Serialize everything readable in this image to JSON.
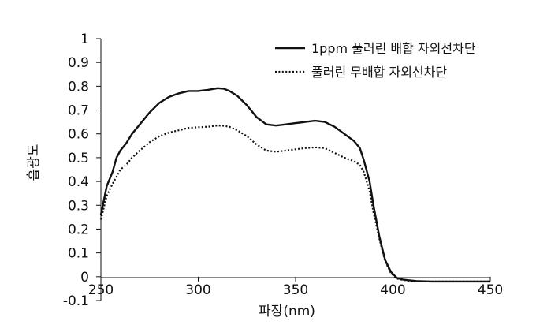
{
  "chart_data": {
    "type": "line",
    "title": "",
    "xlabel": "파장(nm)",
    "ylabel": "흡광도",
    "xlim": [
      250,
      450
    ],
    "ylim": [
      -0.1,
      1
    ],
    "xticks": [
      250,
      300,
      350,
      400,
      450
    ],
    "yticks": [
      -0.1,
      0,
      0.1,
      0.2,
      0.3,
      0.4,
      0.5,
      0.6,
      0.7,
      0.8,
      0.9,
      1
    ],
    "ytick_labels": [
      "-0.1",
      "0",
      "0.1",
      "0.2",
      "0.3",
      "0.4",
      "0.5",
      "0.6",
      "0.7",
      "0.8",
      "0.9",
      "1"
    ],
    "xtick_labels": [
      "250",
      "300",
      "350",
      "400",
      "450"
    ],
    "grid": false,
    "legend_position": "top-right",
    "series": [
      {
        "name": "1ppm 풀러린 배합 자외선차단",
        "style": "solid",
        "color": "#111111",
        "x": [
          250,
          253,
          256,
          258,
          260,
          263,
          266,
          270,
          275,
          280,
          285,
          290,
          295,
          300,
          305,
          310,
          313,
          316,
          320,
          325,
          330,
          335,
          340,
          345,
          350,
          355,
          360,
          365,
          370,
          375,
          380,
          383,
          385,
          388,
          390,
          393,
          396,
          399,
          402,
          405,
          408,
          412,
          420,
          430,
          440,
          450
        ],
        "y": [
          0.26,
          0.38,
          0.44,
          0.5,
          0.53,
          0.56,
          0.6,
          0.64,
          0.69,
          0.73,
          0.755,
          0.77,
          0.78,
          0.78,
          0.785,
          0.792,
          0.79,
          0.78,
          0.76,
          0.72,
          0.67,
          0.64,
          0.635,
          0.64,
          0.645,
          0.65,
          0.655,
          0.65,
          0.63,
          0.6,
          0.57,
          0.54,
          0.49,
          0.4,
          0.3,
          0.17,
          0.07,
          0.02,
          -0.005,
          -0.012,
          -0.015,
          -0.018,
          -0.02,
          -0.02,
          -0.02,
          -0.02
        ]
      },
      {
        "name": "풀러린 무배합 자외선차단",
        "style": "dotted",
        "color": "#111111",
        "x": [
          250,
          253,
          256,
          258,
          260,
          263,
          266,
          270,
          275,
          280,
          285,
          290,
          295,
          300,
          305,
          310,
          313,
          316,
          320,
          325,
          330,
          335,
          340,
          345,
          350,
          355,
          360,
          365,
          370,
          375,
          380,
          383,
          385,
          388,
          390,
          393,
          396,
          399,
          402,
          405,
          408,
          412,
          420,
          430,
          440,
          450
        ],
        "y": [
          0.24,
          0.34,
          0.39,
          0.42,
          0.45,
          0.47,
          0.5,
          0.53,
          0.565,
          0.59,
          0.605,
          0.615,
          0.625,
          0.628,
          0.63,
          0.635,
          0.634,
          0.63,
          0.615,
          0.59,
          0.555,
          0.53,
          0.525,
          0.53,
          0.535,
          0.54,
          0.543,
          0.54,
          0.52,
          0.5,
          0.485,
          0.47,
          0.44,
          0.36,
          0.27,
          0.16,
          0.065,
          0.015,
          -0.008,
          -0.014,
          -0.017,
          -0.019,
          -0.02,
          -0.02,
          -0.02,
          -0.02
        ]
      }
    ]
  }
}
